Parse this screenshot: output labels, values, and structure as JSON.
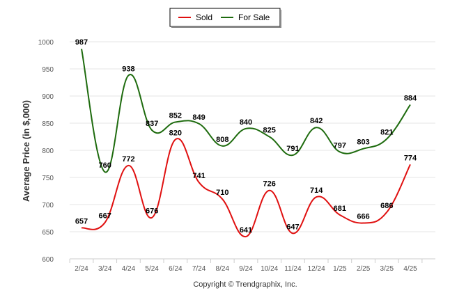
{
  "chart_data": {
    "type": "line",
    "ylabel": "Average Price (in $,000)",
    "ylim": [
      600,
      1000
    ],
    "yticks": [
      600,
      650,
      700,
      750,
      800,
      850,
      900,
      950,
      1000
    ],
    "categories": [
      "2/24",
      "3/24",
      "4/24",
      "5/24",
      "6/24",
      "7/24",
      "8/24",
      "9/24",
      "10/24",
      "11/24",
      "12/24",
      "1/25",
      "2/25",
      "3/25",
      "4/25"
    ],
    "series": [
      {
        "name": "Sold",
        "color": "#e01010",
        "values": [
          657,
          667,
          772,
          676,
          820,
          741,
          710,
          641,
          726,
          647,
          714,
          681,
          666,
          686,
          774
        ]
      },
      {
        "name": "For Sale",
        "color": "#1e6b0e",
        "values": [
          987,
          760,
          938,
          837,
          852,
          849,
          808,
          840,
          825,
          791,
          842,
          797,
          803,
          821,
          884
        ]
      }
    ],
    "grid": true,
    "legend": "top-center",
    "credit": "Copyright © Trendgraphix, Inc."
  }
}
